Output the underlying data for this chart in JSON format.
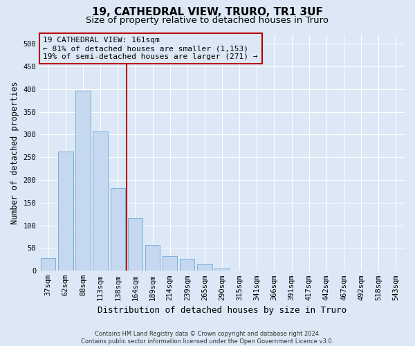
{
  "title": "19, CATHEDRAL VIEW, TRURO, TR1 3UF",
  "subtitle": "Size of property relative to detached houses in Truro",
  "xlabel": "Distribution of detached houses by size in Truro",
  "ylabel": "Number of detached properties",
  "categories": [
    "37sqm",
    "62sqm",
    "88sqm",
    "113sqm",
    "138sqm",
    "164sqm",
    "189sqm",
    "214sqm",
    "239sqm",
    "265sqm",
    "290sqm",
    "315sqm",
    "341sqm",
    "366sqm",
    "391sqm",
    "417sqm",
    "442sqm",
    "467sqm",
    "492sqm",
    "518sqm",
    "543sqm"
  ],
  "values": [
    28,
    263,
    397,
    307,
    182,
    117,
    57,
    33,
    26,
    14,
    5,
    1,
    0,
    0,
    0,
    0,
    1,
    0,
    0,
    0,
    1
  ],
  "bar_color": "#c5d8ef",
  "bar_edge_color": "#6fa8d4",
  "background_color": "#dce8f5",
  "grid_color": "#ffffff",
  "vline_color": "#bb0000",
  "vline_x_index": 5,
  "annotation_text": "19 CATHEDRAL VIEW: 161sqm\n← 81% of detached houses are smaller (1,153)\n19% of semi-detached houses are larger (271) →",
  "annotation_box_edge_color": "#bb0000",
  "ylim": [
    0,
    520
  ],
  "yticks": [
    0,
    50,
    100,
    150,
    200,
    250,
    300,
    350,
    400,
    450,
    500
  ],
  "footer": "Contains HM Land Registry data © Crown copyright and database right 2024.\nContains public sector information licensed under the Open Government Licence v3.0.",
  "title_fontsize": 11,
  "subtitle_fontsize": 9.5,
  "xlabel_fontsize": 9,
  "ylabel_fontsize": 8.5,
  "tick_fontsize": 7.5,
  "annotation_fontsize": 8,
  "footer_fontsize": 6
}
